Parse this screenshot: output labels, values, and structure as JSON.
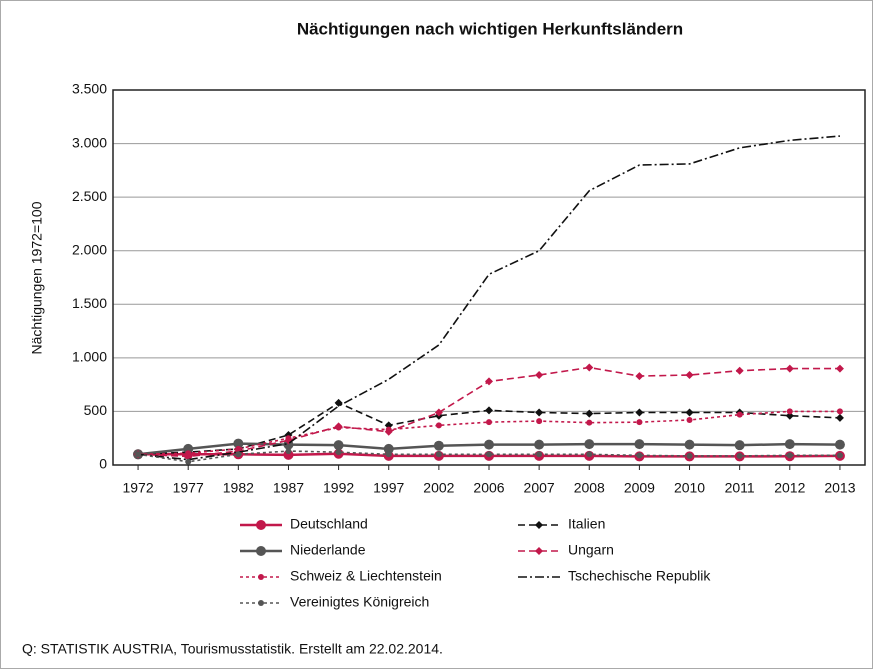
{
  "chart_data": {
    "type": "line",
    "title": "Nächtigungen nach wichtigen Herkunftsländern",
    "ylabel": "Nächtigungen 1972=100",
    "source": "Q: STATISTIK AUSTRIA, Tourismusstatistik. Erstellt am 22.02.2014.",
    "categories": [
      "1972",
      "1977",
      "1982",
      "1987",
      "1992",
      "1997",
      "2002",
      "2006",
      "2007",
      "2008",
      "2009",
      "2010",
      "2011",
      "2012",
      "2013"
    ],
    "ylim": [
      0,
      3500
    ],
    "yticks": [
      0,
      500,
      {
        "value": 1000,
        "label": "1.000"
      },
      {
        "value": 1500,
        "label": "1.500"
      },
      {
        "value": 2000,
        "label": "2.000"
      },
      {
        "value": 2500,
        "label": "2.500"
      },
      {
        "value": 3000,
        "label": "3.000"
      },
      {
        "value": 3500,
        "label": "3.500"
      }
    ],
    "grid": true,
    "series": [
      {
        "name": "Deutschland",
        "color": "#c2184b",
        "dash": "solid",
        "marker": "circle",
        "values": [
          100,
          100,
          100,
          95,
          105,
          85,
          85,
          85,
          85,
          85,
          80,
          80,
          80,
          82,
          85
        ]
      },
      {
        "name": "Italien",
        "color": "#111111",
        "dash": "dashed",
        "marker": "diamond",
        "values": [
          100,
          120,
          150,
          280,
          580,
          370,
          460,
          510,
          490,
          480,
          490,
          490,
          490,
          460,
          440
        ]
      },
      {
        "name": "Niederlande",
        "color": "#555555",
        "dash": "solid",
        "marker": "circle",
        "values": [
          100,
          150,
          200,
          190,
          185,
          150,
          180,
          190,
          190,
          195,
          195,
          190,
          185,
          195,
          190
        ]
      },
      {
        "name": "Ungarn",
        "color": "#c2184b",
        "dash": "dashed",
        "marker": "diamond",
        "values": [
          100,
          80,
          130,
          230,
          360,
          310,
          490,
          780,
          840,
          910,
          830,
          840,
          880,
          900,
          900
        ]
      },
      {
        "name": "Schweiz & Liechtenstein",
        "color": "#c2184b",
        "dash": "dotted",
        "marker": "smallcircle",
        "values": [
          100,
          110,
          150,
          250,
          350,
          330,
          370,
          400,
          410,
          395,
          400,
          420,
          470,
          500,
          500
        ]
      },
      {
        "name": "Tschechische Republik",
        "color": "#111111",
        "dash": "dashdot",
        "marker": "none",
        "values": [
          100,
          50,
          120,
          200,
          550,
          800,
          1120,
          1780,
          2000,
          2560,
          2800,
          2810,
          2960,
          3030,
          3070
        ]
      },
      {
        "name": "Vereinigtes Königreich",
        "color": "#555555",
        "dash": "dotted",
        "marker": "smallcircle",
        "values": [
          100,
          30,
          100,
          130,
          120,
          100,
          100,
          100,
          100,
          100,
          90,
          85,
          85,
          90,
          90
        ]
      }
    ]
  }
}
